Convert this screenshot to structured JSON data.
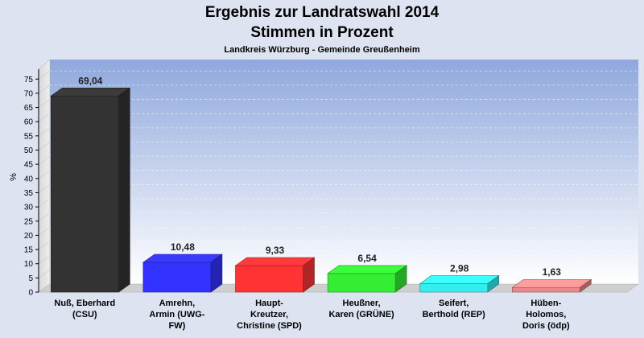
{
  "chart_data": {
    "type": "bar",
    "title": "Ergebnis zur Landratswahl 2014",
    "title_line2": "Stimmen in Prozent",
    "subtitle": "Landkreis Würzburg - Gemeinde Greußenheim",
    "ylabel": "%",
    "ylim": [
      0,
      78
    ],
    "yticks": [
      0,
      5,
      10,
      15,
      20,
      25,
      30,
      35,
      40,
      45,
      50,
      55,
      60,
      65,
      70,
      75
    ],
    "grid": true,
    "legend": "none",
    "categories": [
      [
        "Nuß, Eberhard",
        "(CSU)"
      ],
      [
        "Amrehn,",
        "Armin (UWG-",
        "FW)"
      ],
      [
        "Haupt-",
        "Kreutzer,",
        "Christine (SPD)"
      ],
      [
        "Heußner,",
        "Karen (GRÜNE)"
      ],
      [
        "Seifert,",
        "Berthold (REP)"
      ],
      [
        "Hüben-",
        "Holomos,",
        "Doris (ödp)"
      ]
    ],
    "values": [
      69.04,
      10.48,
      9.33,
      6.54,
      2.98,
      1.63
    ],
    "value_labels": [
      "69,04",
      "10,48",
      "9,33",
      "6,54",
      "2,98",
      "1,63"
    ],
    "colors": [
      "#333333",
      "#3333ff",
      "#ff3333",
      "#33ee33",
      "#33eeee",
      "#ee8888"
    ]
  }
}
